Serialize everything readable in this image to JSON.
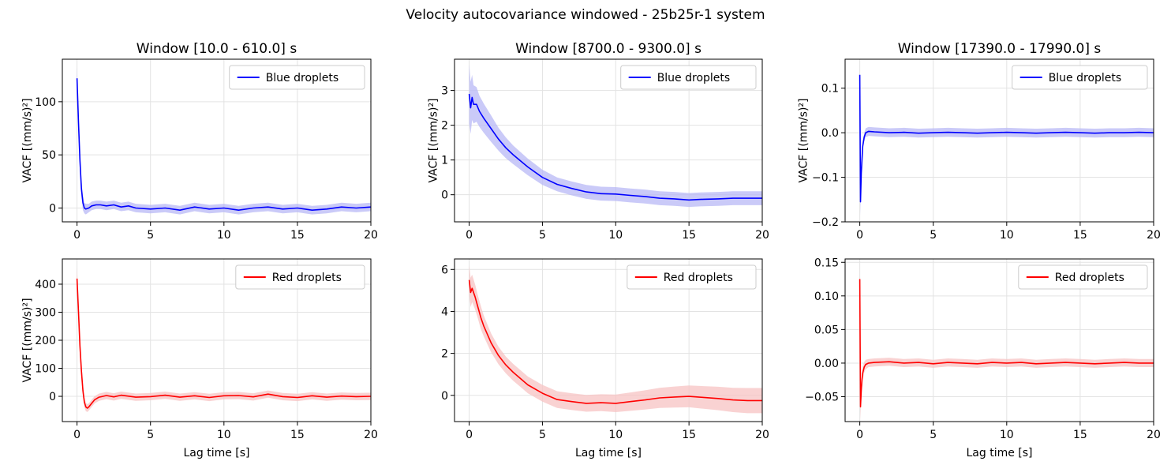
{
  "figure": {
    "title": "Velocity autocovariance windowed - 25b25r-1 system"
  },
  "colors": {
    "blue": "#0000ff",
    "red": "#ff0000",
    "blue_band": "#b8b8f6",
    "red_band": "#f7c3c3",
    "grid": "#e3e3e3"
  },
  "chart_data": [
    {
      "type": "line",
      "id": "p11",
      "title": "Window [10.0 - 610.0] s",
      "xlabel": "",
      "ylabel": "VACF [(mm/s)²]",
      "xlim": [
        -1,
        20
      ],
      "ylim": [
        -13,
        140
      ],
      "xticks": [
        0,
        5,
        10,
        15,
        20
      ],
      "xtick_labels": [
        "0",
        "5",
        "10",
        "15",
        "20"
      ],
      "yticks": [
        0,
        50,
        100
      ],
      "ytick_labels": [
        "0",
        "50",
        "100"
      ],
      "legend": "top-right",
      "grid": true,
      "series": [
        {
          "name": "Blue droplets",
          "color": "blue",
          "x": [
            0,
            0.1,
            0.2,
            0.3,
            0.4,
            0.5,
            0.6,
            0.8,
            1.0,
            1.3,
            1.6,
            2.0,
            2.5,
            3.0,
            3.5,
            4.0,
            5.0,
            6.0,
            7.0,
            8.0,
            9.0,
            10.0,
            11.0,
            12.0,
            13.0,
            14.0,
            15.0,
            16.0,
            17.0,
            18.0,
            19.0,
            20.0
          ],
          "y": [
            122,
            80,
            45,
            18,
            5,
            0,
            -1,
            0,
            2,
            3,
            3,
            2,
            3,
            1,
            2,
            0,
            -1,
            0,
            -2,
            1,
            -1,
            0,
            -2,
            0,
            1,
            -1,
            0,
            -2,
            -1,
            1,
            0,
            1
          ],
          "band": [
            10,
            10,
            9,
            8,
            7,
            5,
            5,
            4,
            4,
            4,
            4,
            4,
            4,
            4,
            4,
            4,
            4,
            4,
            4,
            4,
            4,
            4,
            4,
            4,
            4,
            4,
            4,
            4,
            4,
            4,
            4,
            4
          ]
        }
      ]
    },
    {
      "type": "line",
      "id": "p12",
      "title": "Window [8700.0 - 9300.0] s",
      "xlabel": "",
      "ylabel": "VACF [(mm/s)²]",
      "xlim": [
        -1,
        20
      ],
      "ylim": [
        -0.78,
        3.9
      ],
      "xticks": [
        0,
        5,
        10,
        15,
        20
      ],
      "xtick_labels": [
        "0",
        "5",
        "10",
        "15",
        "20"
      ],
      "yticks": [
        0,
        1,
        2,
        3
      ],
      "ytick_labels": [
        "0",
        "1",
        "2",
        "3"
      ],
      "legend": "top-right",
      "grid": true,
      "series": [
        {
          "name": "Blue droplets",
          "color": "blue",
          "x": [
            0,
            0.1,
            0.2,
            0.3,
            0.5,
            0.7,
            1.0,
            1.5,
            2.0,
            2.5,
            3.0,
            4.0,
            5.0,
            6.0,
            7.0,
            8.0,
            9.0,
            10.0,
            11.0,
            12.0,
            13.0,
            14.0,
            15.0,
            16.0,
            17.0,
            18.0,
            19.0,
            20.0
          ],
          "y": [
            2.9,
            2.5,
            2.8,
            2.6,
            2.6,
            2.4,
            2.2,
            1.9,
            1.6,
            1.35,
            1.15,
            0.8,
            0.5,
            0.3,
            0.18,
            0.08,
            0.03,
            0.02,
            -0.02,
            -0.05,
            -0.1,
            -0.12,
            -0.15,
            -0.13,
            -0.12,
            -0.1,
            -0.1,
            -0.1
          ],
          "band": [
            0.85,
            0.75,
            0.65,
            0.55,
            0.5,
            0.45,
            0.42,
            0.38,
            0.33,
            0.3,
            0.27,
            0.24,
            0.22,
            0.2,
            0.2,
            0.2,
            0.2,
            0.2,
            0.2,
            0.2,
            0.2,
            0.2,
            0.2,
            0.2,
            0.2,
            0.2,
            0.2,
            0.2
          ]
        }
      ]
    },
    {
      "type": "line",
      "id": "p13",
      "title": "Window [17390.0 - 17990.0] s",
      "xlabel": "",
      "ylabel": "VACF [(mm/s)²]",
      "xlim": [
        -1,
        20
      ],
      "ylim": [
        -0.2,
        0.165
      ],
      "xticks": [
        0,
        5,
        10,
        15,
        20
      ],
      "xtick_labels": [
        "0",
        "5",
        "10",
        "15",
        "20"
      ],
      "yticks": [
        -0.2,
        -0.1,
        0.0,
        0.1
      ],
      "ytick_labels": [
        "−0.2",
        "−0.1",
        "0.0",
        "0.1"
      ],
      "legend": "top-right",
      "grid": true,
      "series": [
        {
          "name": "Blue droplets",
          "color": "blue",
          "x": [
            0,
            0.05,
            0.1,
            0.15,
            0.2,
            0.3,
            0.4,
            0.6,
            1.0,
            2.0,
            3.0,
            4.0,
            5.0,
            6.0,
            7.0,
            8.0,
            9.0,
            10.0,
            11.0,
            12.0,
            13.0,
            14.0,
            15.0,
            16.0,
            17.0,
            18.0,
            19.0,
            20.0
          ],
          "y": [
            0.13,
            -0.155,
            -0.09,
            -0.06,
            -0.03,
            -0.01,
            0.0,
            0.003,
            0.002,
            0.0,
            0.001,
            -0.001,
            0.0,
            0.001,
            0.0,
            -0.001,
            0.0,
            0.001,
            0.0,
            -0.001,
            0.0,
            0.001,
            0.0,
            -0.001,
            0.0,
            0.0,
            0.001,
            0.0
          ],
          "band": [
            0.025,
            0.03,
            0.02,
            0.015,
            0.012,
            0.01,
            0.01,
            0.01,
            0.01,
            0.01,
            0.01,
            0.01,
            0.01,
            0.01,
            0.01,
            0.01,
            0.01,
            0.01,
            0.01,
            0.01,
            0.01,
            0.01,
            0.01,
            0.01,
            0.01,
            0.01,
            0.01,
            0.01
          ]
        }
      ]
    },
    {
      "type": "line",
      "id": "p21",
      "title": "",
      "xlabel": "Lag time [s]",
      "ylabel": "VACF [(mm/s)²]",
      "xlim": [
        -1,
        20
      ],
      "ylim": [
        -90,
        490
      ],
      "xticks": [
        0,
        5,
        10,
        15,
        20
      ],
      "xtick_labels": [
        "0",
        "5",
        "10",
        "15",
        "20"
      ],
      "yticks": [
        0,
        100,
        200,
        300,
        400
      ],
      "ytick_labels": [
        "0",
        "100",
        "200",
        "300",
        "400"
      ],
      "legend": "top-right",
      "grid": true,
      "series": [
        {
          "name": "Red droplets",
          "color": "red",
          "x": [
            0,
            0.1,
            0.2,
            0.3,
            0.4,
            0.5,
            0.6,
            0.7,
            0.8,
            1.0,
            1.2,
            1.5,
            2.0,
            2.5,
            3.0,
            4.0,
            5.0,
            6.0,
            7.0,
            8.0,
            9.0,
            10.0,
            11.0,
            12.0,
            13.0,
            14.0,
            15.0,
            16.0,
            17.0,
            18.0,
            19.0,
            20.0
          ],
          "y": [
            420,
            300,
            180,
            90,
            20,
            -20,
            -38,
            -42,
            -38,
            -25,
            -12,
            -3,
            3,
            -2,
            4,
            -3,
            -1,
            4,
            -3,
            2,
            -4,
            2,
            3,
            -2,
            8,
            -1,
            -4,
            2,
            -3,
            1,
            -1,
            0
          ],
          "band": [
            40,
            38,
            34,
            28,
            22,
            18,
            15,
            14,
            13,
            13,
            13,
            13,
            13,
            13,
            13,
            13,
            13,
            13,
            13,
            13,
            13,
            13,
            13,
            13,
            13,
            13,
            13,
            13,
            13,
            13,
            13,
            13
          ]
        }
      ]
    },
    {
      "type": "line",
      "id": "p22",
      "title": "",
      "xlabel": "Lag time [s]",
      "ylabel": "",
      "xlim": [
        -1,
        20
      ],
      "ylim": [
        -1.25,
        6.5
      ],
      "xticks": [
        0,
        5,
        10,
        15,
        20
      ],
      "xtick_labels": [
        "0",
        "5",
        "10",
        "15",
        "20"
      ],
      "yticks": [
        0,
        2,
        4,
        6
      ],
      "ytick_labels": [
        "0",
        "2",
        "4",
        "6"
      ],
      "legend": "top-right",
      "grid": true,
      "series": [
        {
          "name": "Red droplets",
          "color": "red",
          "x": [
            0,
            0.1,
            0.2,
            0.4,
            0.6,
            0.8,
            1.0,
            1.5,
            2.0,
            2.5,
            3.0,
            3.5,
            4.0,
            5.0,
            6.0,
            7.0,
            8.0,
            9.0,
            10.0,
            11.0,
            12.0,
            13.0,
            14.0,
            15.0,
            16.0,
            17.0,
            18.0,
            19.0,
            20.0
          ],
          "y": [
            5.5,
            4.9,
            5.1,
            4.7,
            4.2,
            3.7,
            3.3,
            2.5,
            1.9,
            1.45,
            1.1,
            0.8,
            0.5,
            0.1,
            -0.2,
            -0.3,
            -0.38,
            -0.35,
            -0.38,
            -0.3,
            -0.22,
            -0.12,
            -0.08,
            -0.05,
            -0.1,
            -0.15,
            -0.22,
            -0.25,
            -0.25
          ],
          "band": [
            0.7,
            0.7,
            0.65,
            0.6,
            0.55,
            0.55,
            0.5,
            0.45,
            0.42,
            0.4,
            0.4,
            0.4,
            0.4,
            0.4,
            0.4,
            0.4,
            0.4,
            0.4,
            0.42,
            0.44,
            0.46,
            0.48,
            0.5,
            0.52,
            0.54,
            0.56,
            0.58,
            0.6,
            0.6
          ]
        }
      ]
    },
    {
      "type": "line",
      "id": "p23",
      "title": "",
      "xlabel": "Lag time [s]",
      "ylabel": "",
      "xlim": [
        -1,
        20
      ],
      "ylim": [
        -0.087,
        0.155
      ],
      "xticks": [
        0,
        5,
        10,
        15,
        20
      ],
      "xtick_labels": [
        "0",
        "5",
        "10",
        "15",
        "20"
      ],
      "yticks": [
        -0.05,
        0.0,
        0.05,
        0.1,
        0.15
      ],
      "ytick_labels": [
        "−0.05",
        "0.00",
        "0.05",
        "0.10",
        "0.15"
      ],
      "legend": "top-right",
      "grid": true,
      "series": [
        {
          "name": "Red droplets",
          "color": "red",
          "x": [
            0,
            0.05,
            0.1,
            0.15,
            0.2,
            0.3,
            0.4,
            0.6,
            1.0,
            2.0,
            3.0,
            4.0,
            5.0,
            6.0,
            7.0,
            8.0,
            9.0,
            10.0,
            11.0,
            12.0,
            13.0,
            14.0,
            15.0,
            16.0,
            17.0,
            18.0,
            19.0,
            20.0
          ],
          "y": [
            0.125,
            -0.065,
            -0.04,
            -0.025,
            -0.015,
            -0.006,
            -0.002,
            0.0,
            0.001,
            0.002,
            0.0,
            0.001,
            -0.001,
            0.001,
            0.0,
            -0.001,
            0.001,
            0.0,
            0.001,
            -0.001,
            0.0,
            0.001,
            0.0,
            -0.001,
            0.0,
            0.001,
            0.0,
            0.0
          ],
          "band": [
            0.025,
            0.02,
            0.015,
            0.012,
            0.01,
            0.008,
            0.007,
            0.006,
            0.006,
            0.006,
            0.006,
            0.006,
            0.006,
            0.006,
            0.006,
            0.006,
            0.006,
            0.006,
            0.006,
            0.006,
            0.006,
            0.006,
            0.006,
            0.006,
            0.006,
            0.006,
            0.006,
            0.006
          ]
        }
      ]
    }
  ]
}
